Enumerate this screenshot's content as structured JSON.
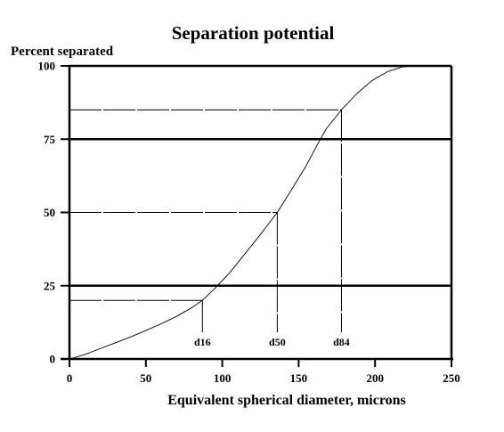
{
  "chart_data": {
    "type": "line",
    "title": "Separation potential",
    "xlabel": "Equivalent spherical diameter, microns",
    "ylabel": "Percent separated",
    "xlim": [
      0,
      250
    ],
    "ylim": [
      0,
      100
    ],
    "x_ticks": [
      0,
      50,
      100,
      150,
      200,
      250
    ],
    "y_ticks": [
      0,
      25,
      50,
      75,
      100
    ],
    "grid": {
      "horizontal_bold_lines_at": [
        25,
        75,
        100
      ]
    },
    "series": [
      {
        "x": [
          0,
          10,
          20,
          30,
          40,
          50,
          60,
          70,
          80,
          87,
          95,
          105,
          115,
          125,
          136,
          145,
          155,
          160,
          168,
          178,
          188,
          198,
          208,
          218,
          226
        ],
        "y": [
          0,
          1.5,
          3.5,
          5.5,
          7.5,
          9.7,
          12,
          14.5,
          17.5,
          20,
          24,
          29.5,
          36,
          42.5,
          50,
          57.5,
          66,
          71,
          78.5,
          85,
          90.5,
          95,
          98,
          99.7,
          100
        ]
      }
    ],
    "markers": [
      {
        "label": "d16",
        "x": 87,
        "y": 20
      },
      {
        "label": "d50",
        "x": 136,
        "y": 50
      },
      {
        "label": "d84",
        "x": 178,
        "y": 85
      }
    ],
    "colors": {
      "line": "#000000",
      "background": "#ffffff"
    }
  }
}
